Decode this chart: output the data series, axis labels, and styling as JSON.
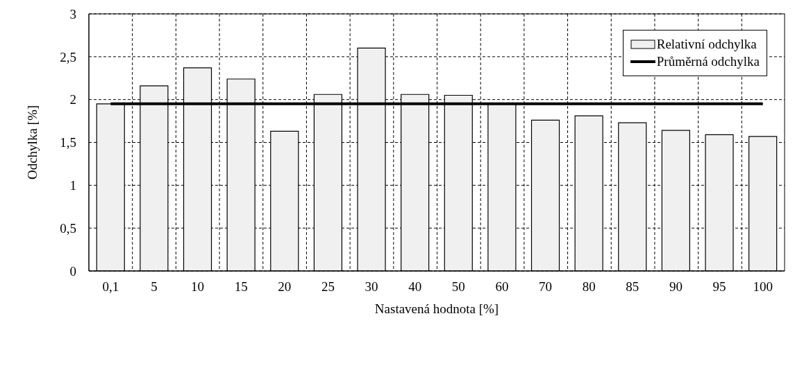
{
  "chart_data": {
    "type": "bar",
    "xlabel": "Nastavená hodnota [%]",
    "ylabel": "Odchylka [%]",
    "categories": [
      "0,1",
      "5",
      "10",
      "15",
      "20",
      "25",
      "30",
      "40",
      "50",
      "60",
      "70",
      "80",
      "85",
      "90",
      "95",
      "100"
    ],
    "series": [
      {
        "name": "Relativní odchylka",
        "color": "#f0f0f0",
        "values": [
          1.95,
          2.16,
          2.37,
          2.24,
          1.63,
          2.06,
          2.6,
          2.06,
          2.05,
          1.96,
          1.76,
          1.81,
          1.73,
          1.64,
          1.59,
          1.57
        ]
      },
      {
        "name": "Průměrná odchylka",
        "type": "line",
        "color": "#000000",
        "values": [
          1.95,
          1.95,
          1.95,
          1.95,
          1.95,
          1.95,
          1.95,
          1.95,
          1.95,
          1.95,
          1.95,
          1.95,
          1.95,
          1.95,
          1.95,
          1.95
        ]
      }
    ],
    "ylim": [
      0,
      3
    ],
    "yticks": [
      0,
      {
        "value": 0.5,
        "label": "0,5"
      },
      1,
      {
        "value": 1.5,
        "label": "1,5"
      },
      2,
      {
        "value": 2.5,
        "label": "2,5"
      },
      3
    ],
    "grid": true,
    "legend": "top right",
    "marker": "none",
    "line_style": "solid"
  }
}
